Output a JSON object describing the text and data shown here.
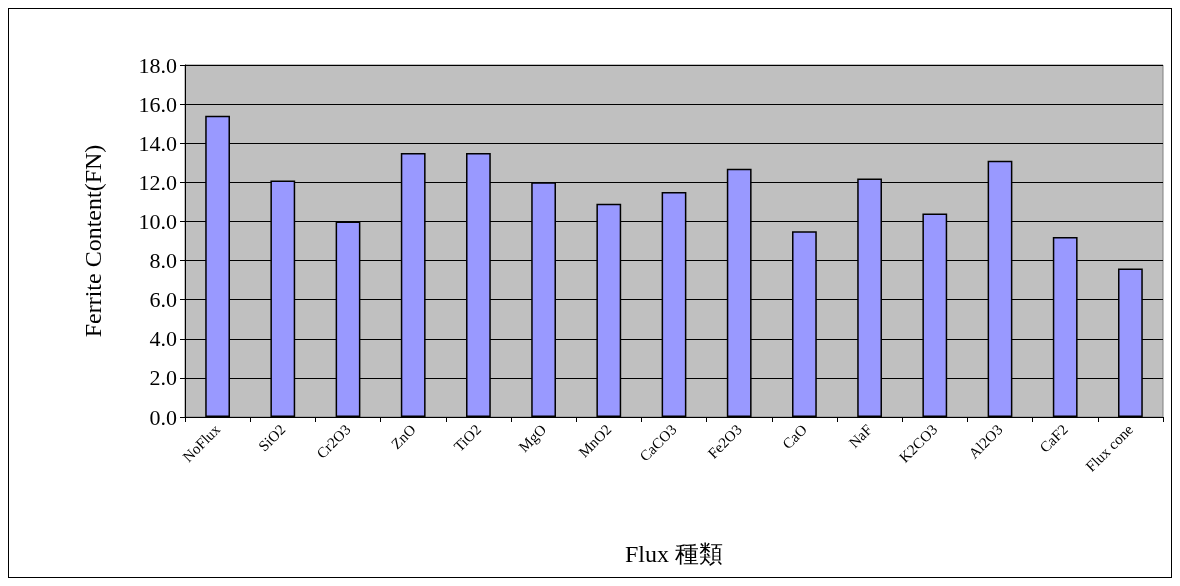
{
  "chart_data": {
    "type": "bar",
    "xlabel": "Flux 種類",
    "ylabel": "Ferrite Content(FN)",
    "categories": [
      "NoFlux",
      "SiO2",
      "Cr2O3",
      "ZnO",
      "TiO2",
      "MgO",
      "MnO2",
      "CaCO3",
      "Fe2O3",
      "CaO",
      "NaF",
      "K2CO3",
      "Al2O3",
      "CaF2",
      "Flux cone"
    ],
    "values": [
      15.4,
      12.1,
      10.0,
      13.5,
      13.5,
      12.0,
      10.9,
      11.5,
      12.7,
      9.5,
      12.2,
      10.4,
      13.1,
      9.2,
      7.6
    ],
    "color": "#9999ff",
    "ylim": [
      0,
      18
    ],
    "yticks": [
      {
        "value": 0,
        "label": "0.0"
      },
      {
        "value": 2,
        "label": "2.0"
      },
      {
        "value": 4,
        "label": "4.0"
      },
      {
        "value": 6,
        "label": "6.0"
      },
      {
        "value": 8,
        "label": "8.0"
      },
      {
        "value": 10,
        "label": "10.0"
      },
      {
        "value": 12,
        "label": "12.0"
      },
      {
        "value": 14,
        "label": "14.0"
      },
      {
        "value": 16,
        "label": "16.0"
      },
      {
        "value": 18,
        "label": "18.0"
      }
    ],
    "grid": "y"
  }
}
